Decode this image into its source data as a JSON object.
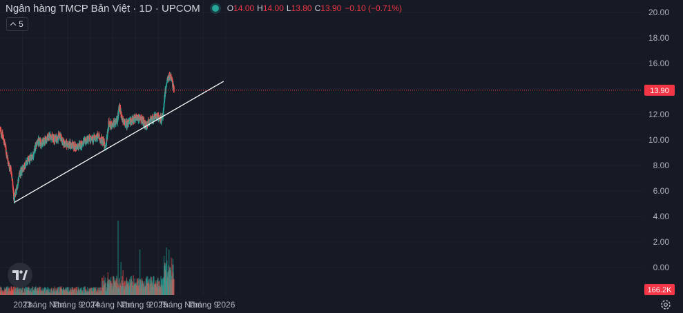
{
  "symbol": {
    "name": "Ngân hàng TMCP Bản Việt · 1D · UPCOM",
    "open_label": "O",
    "open": "14.00",
    "high_label": "H",
    "high": "14.00",
    "low_label": "L",
    "low": "13.80",
    "close_label": "C",
    "close": "13.90",
    "change": "−0.10 (−0.71%)"
  },
  "collapse_count": "5",
  "colors": {
    "up": "#26a69a",
    "down": "#ef5350",
    "background": "#161a25",
    "price_tag": "#f23645",
    "trendline": "#ffffff"
  },
  "icons": {
    "logo": "tradingview-logo-icon",
    "settings": "gear-icon"
  },
  "chart_data": {
    "type": "candlestick",
    "x_axis_labels": [
      "2023",
      "Tháng Năm",
      "Tháng 9",
      "2024",
      "Tháng Năm",
      "Tháng 9",
      "2025",
      "Tháng Năm",
      "Tháng 9",
      "2026"
    ],
    "y_axis_ticks": [
      "20.00",
      "18.00",
      "16.00",
      "14.00",
      "12.00",
      "10.00",
      "8.00",
      "6.00",
      "4.00",
      "2.00",
      "0.00"
    ],
    "ylim": [
      0,
      20
    ],
    "last_price": "13.90",
    "last_volume": "166.2K",
    "price_path": [
      [
        "2022-09-01",
        10.8
      ],
      [
        "2022-09-15",
        10.3
      ],
      [
        "2022-10-01",
        9.4
      ],
      [
        "2022-10-15",
        8.2
      ],
      [
        "2022-11-01",
        7.6
      ],
      [
        "2022-11-16",
        5.3
      ],
      [
        "2022-12-01",
        6.3
      ],
      [
        "2022-12-15",
        7.2
      ],
      [
        "2023-01-01",
        7.8
      ],
      [
        "2023-02-01",
        8.4
      ],
      [
        "2023-03-01",
        8.9
      ],
      [
        "2023-03-20",
        9.9
      ],
      [
        "2023-04-15",
        9.7
      ],
      [
        "2023-05-10",
        10.1
      ],
      [
        "2023-05-25",
        10.4
      ],
      [
        "2023-06-20",
        10.0
      ],
      [
        "2023-07-20",
        10.3
      ],
      [
        "2023-08-15",
        9.7
      ],
      [
        "2023-09-20",
        9.6
      ],
      [
        "2023-10-20",
        9.4
      ],
      [
        "2023-11-20",
        9.7
      ],
      [
        "2023-12-20",
        10.1
      ],
      [
        "2024-01-10",
        10.0
      ],
      [
        "2024-02-10",
        10.3
      ],
      [
        "2024-03-10",
        9.9
      ],
      [
        "2024-03-25",
        9.5
      ],
      [
        "2024-04-10",
        11.3
      ],
      [
        "2024-05-01",
        11.2
      ],
      [
        "2024-05-25",
        11.5
      ],
      [
        "2024-06-05",
        12.7
      ],
      [
        "2024-06-20",
        11.6
      ],
      [
        "2024-07-15",
        11.2
      ],
      [
        "2024-08-20",
        11.6
      ],
      [
        "2024-09-10",
        11.8
      ],
      [
        "2024-10-10",
        11.5
      ],
      [
        "2024-10-25",
        11.0
      ],
      [
        "2024-11-20",
        11.6
      ],
      [
        "2024-12-20",
        11.8
      ],
      [
        "2025-01-10",
        11.7
      ],
      [
        "2025-01-25",
        11.6
      ],
      [
        "2025-02-05",
        13.5
      ],
      [
        "2025-02-20",
        14.8
      ],
      [
        "2025-03-10",
        15.0
      ],
      [
        "2025-03-20",
        14.4
      ],
      [
        "2025-03-27",
        13.9
      ]
    ],
    "trendline": {
      "start": [
        "2022-11-16",
        5.1
      ],
      "end": [
        "2025-12-20",
        14.6
      ]
    },
    "volume_spikes": [
      [
        "2024-05-30",
        3.6
      ],
      [
        "2024-09-25",
        2.2
      ],
      [
        "2024-06-15",
        1.6
      ],
      [
        "2025-02-15",
        2.3
      ],
      [
        "2025-02-28",
        2.2
      ],
      [
        "2025-03-10",
        1.2
      ],
      [
        "2024-04-05",
        1.1
      ],
      [
        "2024-06-25",
        1.2
      ]
    ]
  }
}
